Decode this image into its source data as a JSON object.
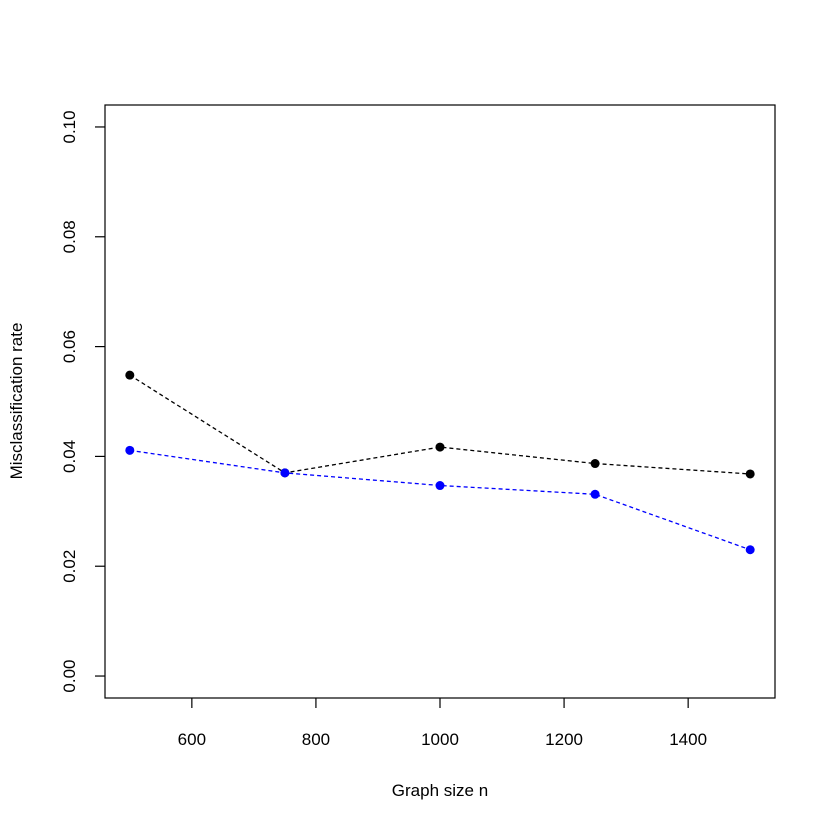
{
  "chart_data": {
    "type": "line",
    "title": "",
    "xlabel": "Graph size n",
    "ylabel": "Misclassification rate",
    "x": [
      500,
      750,
      1000,
      1250,
      1500
    ],
    "xlim": [
      460,
      1540
    ],
    "ylim": [
      -0.004,
      0.104
    ],
    "xticks": [
      600,
      800,
      1000,
      1200,
      1400
    ],
    "yticks": [
      0.0,
      0.02,
      0.04,
      0.06,
      0.08,
      0.1
    ],
    "xtick_labels": [
      "600",
      "800",
      "1000",
      "1200",
      "1400"
    ],
    "ytick_labels": [
      "0.00",
      "0.02",
      "0.04",
      "0.06",
      "0.08",
      "0.10"
    ],
    "grid": false,
    "legend": "none",
    "series": [
      {
        "values": [
          0.0548,
          0.037,
          0.0417,
          0.0387,
          0.0368
        ],
        "color": "#000000",
        "linestyle": "dashed",
        "marker": "filled-circle"
      },
      {
        "values": [
          0.0411,
          0.037,
          0.0347,
          0.0331,
          0.023
        ],
        "color": "#0000ff",
        "linestyle": "dashed",
        "marker": "filled-circle"
      }
    ]
  }
}
